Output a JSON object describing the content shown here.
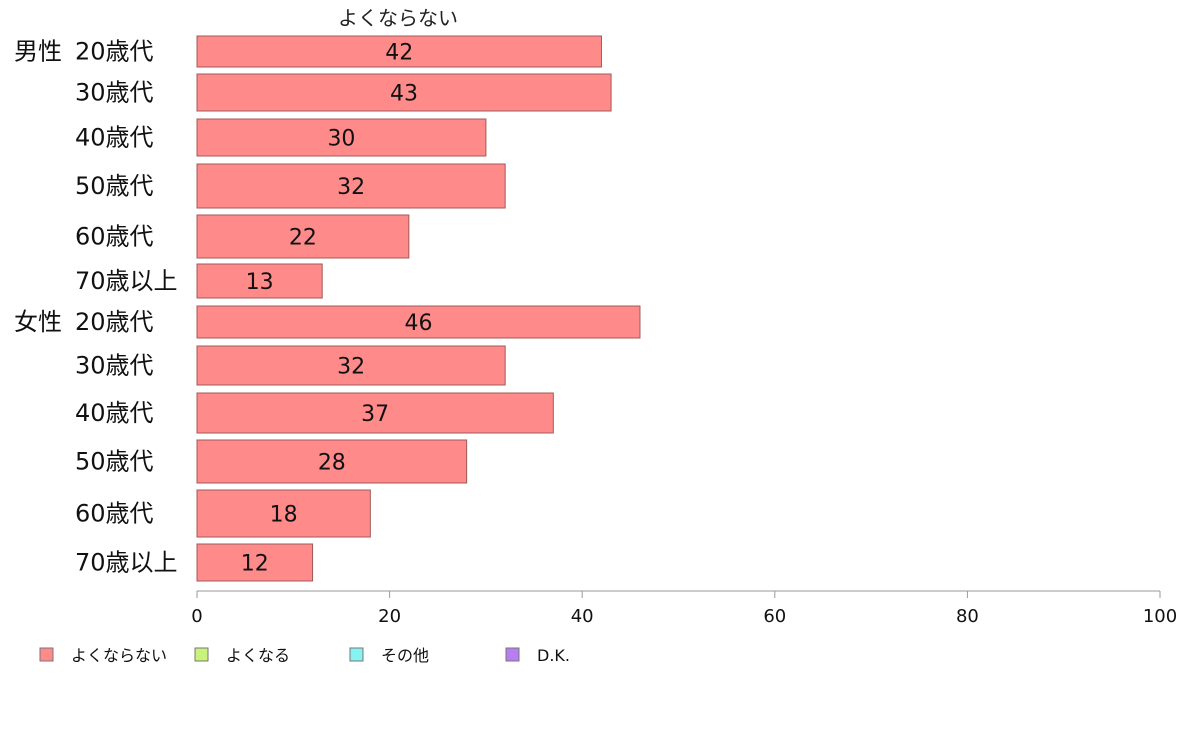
{
  "chart_data": {
    "type": "bar",
    "orientation": "horizontal",
    "title": "よくならない",
    "groups": [
      {
        "label": "男性",
        "categories": [
          "20歳代",
          "30歳代",
          "40歳代",
          "50歳代",
          "60歳代",
          "70歳以上"
        ],
        "values": [
          42,
          43,
          30,
          32,
          22,
          13
        ]
      },
      {
        "label": "女性",
        "categories": [
          "20歳代",
          "30歳代",
          "40歳代",
          "50歳代",
          "60歳代",
          "70歳以上"
        ],
        "values": [
          46,
          32,
          37,
          28,
          18,
          12
        ]
      }
    ],
    "series": [
      {
        "name": "よくならない",
        "color": "#ff8a8a"
      }
    ],
    "xlim": [
      0,
      100
    ],
    "xticks": [
      0,
      20,
      40,
      60,
      80,
      100
    ],
    "grid": false,
    "legend": {
      "placement": "bottom-left",
      "items": [
        {
          "label": "よくならない",
          "color": "#ff8a8a"
        },
        {
          "label": "よくなる",
          "color": "#c8f27a"
        },
        {
          "label": "その他",
          "color": "#86f2f2"
        },
        {
          "label": "D.K.",
          "color": "#b77ef2"
        }
      ]
    },
    "colors": {
      "bar_fill": "#ff8a8a",
      "bar_stroke": "#a05a5a",
      "axis": "#9a9a9a"
    }
  }
}
